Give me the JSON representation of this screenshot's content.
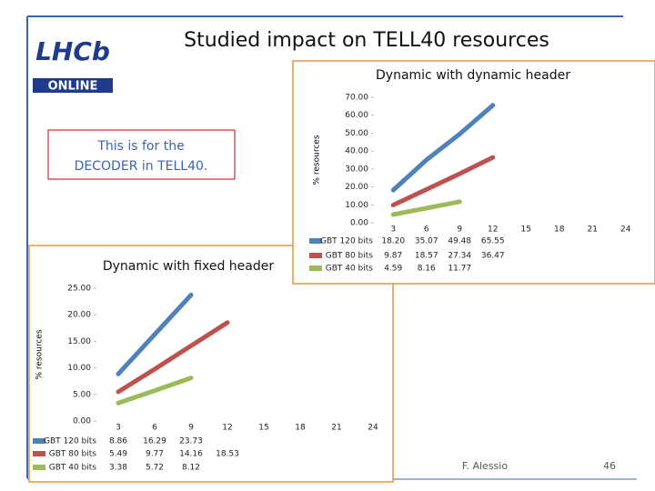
{
  "slide": {
    "title": "Studied impact on TELL40 resources",
    "logo": "LHCb",
    "logo_sub": "ONLINE",
    "note": [
      "This is for the",
      "DECODER in TELL40."
    ],
    "author": "F. Alessio",
    "page": "46"
  },
  "chart_data": [
    {
      "type": "line",
      "title": "Dynamic with dynamic header",
      "ylabel": "% resources",
      "categories": [
        "3",
        "6",
        "9",
        "12",
        "15",
        "18",
        "21",
        "24"
      ],
      "ylim": [
        0,
        70
      ],
      "yticks": [
        {
          "value": 0,
          "label": "0.00"
        },
        {
          "value": 10,
          "label": "10.00"
        },
        {
          "value": 20,
          "label": "20.00"
        },
        {
          "value": 30,
          "label": "30.00"
        },
        {
          "value": 40,
          "label": "40.00"
        },
        {
          "value": 50,
          "label": "50.00"
        },
        {
          "value": 60,
          "label": "60.00"
        },
        {
          "value": 70,
          "label": "70.00"
        }
      ],
      "series": [
        {
          "name": "GBT 120 bits",
          "color": "#4f81bd",
          "values": [
            18.2,
            35.07,
            49.48,
            65.55,
            null,
            null,
            null,
            null
          ],
          "value_labels": [
            "18.20",
            "35.07",
            "49.48",
            "65.55",
            null,
            null,
            null,
            null
          ]
        },
        {
          "name": "GBT 80 bits",
          "color": "#c0504d",
          "values": [
            9.87,
            18.57,
            27.34,
            36.47,
            null,
            null,
            null,
            null
          ],
          "value_labels": [
            "9.87",
            "18.57",
            "27.34",
            "36.47",
            null,
            null,
            null,
            null
          ]
        },
        {
          "name": "GBT 40 bits",
          "color": "#9bbb59",
          "values": [
            4.59,
            8.16,
            11.77,
            null,
            null,
            null,
            null,
            null
          ],
          "value_labels": [
            "4.59",
            "8.16",
            "11.77",
            null,
            null,
            null,
            null,
            null
          ]
        }
      ]
    },
    {
      "type": "line",
      "title": "Dynamic with fixed header",
      "ylabel": "% resources",
      "categories": [
        "3",
        "6",
        "9",
        "12",
        "15",
        "18",
        "21",
        "24"
      ],
      "ylim": [
        0,
        25
      ],
      "yticks": [
        {
          "value": 0,
          "label": "0.00"
        },
        {
          "value": 5,
          "label": "5.00"
        },
        {
          "value": 10,
          "label": "10.00"
        },
        {
          "value": 15,
          "label": "15.00"
        },
        {
          "value": 20,
          "label": "20.00"
        },
        {
          "value": 25,
          "label": "25.00"
        }
      ],
      "series": [
        {
          "name": "GBT 120 bits",
          "color": "#4f81bd",
          "values": [
            8.86,
            16.29,
            23.73,
            null,
            null,
            null,
            null,
            null
          ],
          "value_labels": [
            "8.86",
            "16.29",
            "23.73",
            null,
            null,
            null,
            null,
            null
          ]
        },
        {
          "name": "GBT 80 bits",
          "color": "#c0504d",
          "values": [
            5.49,
            9.77,
            14.16,
            18.53,
            null,
            null,
            null,
            null
          ],
          "value_labels": [
            "5.49",
            "9.77",
            "14.16",
            "18.53",
            null,
            null,
            null,
            null
          ]
        },
        {
          "name": "GBT 40 bits",
          "color": "#9bbb59",
          "values": [
            3.38,
            5.72,
            8.12,
            null,
            null,
            null,
            null,
            null
          ],
          "value_labels": [
            "3.38",
            "5.72",
            "8.12",
            null,
            null,
            null,
            null,
            null
          ]
        }
      ]
    }
  ]
}
